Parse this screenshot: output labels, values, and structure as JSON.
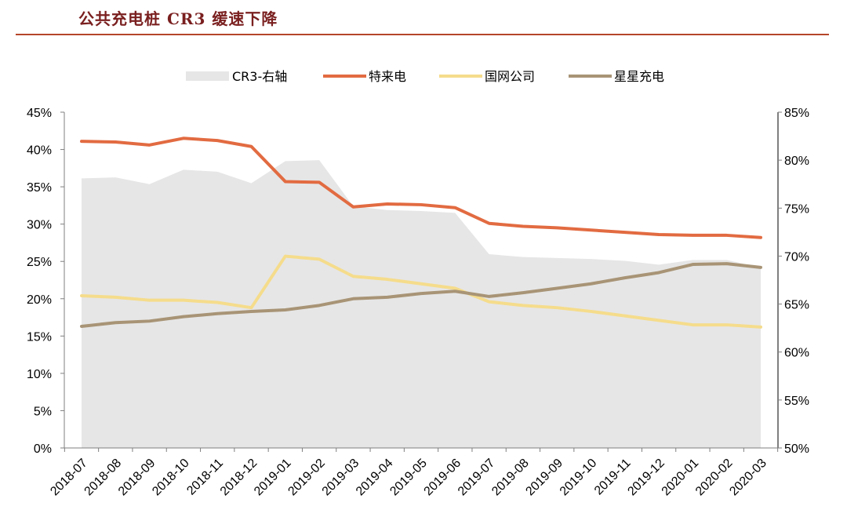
{
  "header": {
    "title": "公共充电桩 CR3 缓速下降"
  },
  "chart_data": {
    "type": "line",
    "title": "公共充电桩 CR3 缓速下降",
    "categories": [
      "2018-07",
      "2018-08",
      "2018-09",
      "2018-10",
      "2018-11",
      "2018-12",
      "2019-01",
      "2019-02",
      "2019-03",
      "2019-04",
      "2019-05",
      "2019-06",
      "2019-07",
      "2019-08",
      "2019-09",
      "2019-10",
      "2019-11",
      "2019-12",
      "2020-01",
      "2020-02",
      "2020-03"
    ],
    "y_left": {
      "range": [
        0,
        45
      ],
      "ticks": [
        0,
        5,
        10,
        15,
        20,
        25,
        30,
        35,
        40,
        45
      ],
      "tick_labels": [
        "0%",
        "5%",
        "10%",
        "15%",
        "20%",
        "25%",
        "30%",
        "35%",
        "40%",
        "45%"
      ]
    },
    "y_right": {
      "range": [
        50,
        85
      ],
      "ticks": [
        50,
        55,
        60,
        65,
        70,
        75,
        80,
        85
      ],
      "tick_labels": [
        "50%",
        "55%",
        "60%",
        "65%",
        "70%",
        "75%",
        "80%",
        "85%"
      ]
    },
    "legend_position": "top-center",
    "grid": false,
    "series": [
      {
        "name": "CR3-右轴",
        "type": "area",
        "axis": "right",
        "color": "#e6e6e6",
        "values": [
          78.1,
          78.2,
          77.5,
          79.0,
          78.8,
          77.6,
          79.9,
          80.0,
          75.2,
          74.8,
          74.7,
          74.5,
          70.2,
          69.9,
          69.8,
          69.7,
          69.5,
          69.1,
          69.6,
          69.6,
          68.8
        ]
      },
      {
        "name": "特来电",
        "type": "line",
        "axis": "left",
        "color": "#e26b41",
        "values": [
          41.1,
          41.0,
          40.6,
          41.5,
          41.2,
          40.4,
          35.7,
          35.6,
          32.3,
          32.7,
          32.6,
          32.2,
          30.1,
          29.7,
          29.5,
          29.2,
          28.9,
          28.6,
          28.5,
          28.5,
          28.2
        ]
      },
      {
        "name": "国网公司",
        "type": "line",
        "axis": "left",
        "color": "#f5dc8c",
        "values": [
          20.4,
          20.2,
          19.8,
          19.8,
          19.5,
          18.8,
          25.7,
          25.3,
          23.0,
          22.6,
          22.0,
          21.4,
          19.6,
          19.1,
          18.8,
          18.3,
          17.7,
          17.1,
          16.5,
          16.5,
          16.2
        ]
      },
      {
        "name": "星星充电",
        "type": "line",
        "axis": "left",
        "color": "#a89476",
        "values": [
          16.3,
          16.8,
          17.0,
          17.6,
          18.0,
          18.3,
          18.5,
          19.1,
          20.0,
          20.2,
          20.7,
          21.0,
          20.3,
          20.8,
          21.4,
          22.0,
          22.8,
          23.5,
          24.6,
          24.7,
          24.2
        ]
      }
    ]
  }
}
